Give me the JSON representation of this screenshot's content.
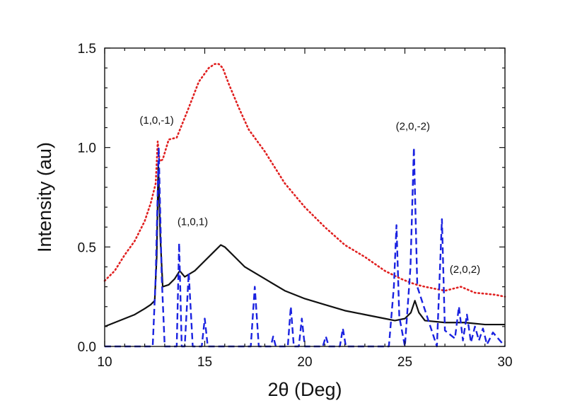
{
  "chart_data": {
    "type": "line",
    "xlabel": "2θ (Deg)",
    "ylabel": "Intensity (au)",
    "xlim": [
      10,
      30
    ],
    "ylim": [
      0,
      1.5
    ],
    "x_ticks": [
      "10",
      "15",
      "20",
      "25",
      "30"
    ],
    "y_ticks": [
      "0.0",
      "0.5",
      "1.0",
      "1.5"
    ],
    "grid": false,
    "legend": "none",
    "series": [
      {
        "style": "dotted",
        "color": "#e02020",
        "x": [
          10.0,
          10.5,
          11.0,
          11.5,
          12.0,
          12.3,
          12.55,
          12.65,
          12.75,
          12.9,
          13.2,
          13.6,
          13.8,
          14.2,
          14.7,
          15.2,
          15.5,
          15.7,
          15.9,
          16.2,
          16.7,
          17.2,
          18.0,
          19.0,
          20.0,
          21.0,
          22.0,
          23.0,
          24.0,
          24.8,
          25.3,
          25.6,
          26.0,
          27.0,
          27.8,
          28.5,
          29.5,
          30.0
        ],
        "values": [
          0.33,
          0.38,
          0.46,
          0.53,
          0.63,
          0.72,
          0.82,
          1.03,
          0.93,
          0.94,
          1.04,
          1.05,
          1.1,
          1.2,
          1.33,
          1.4,
          1.42,
          1.42,
          1.4,
          1.32,
          1.2,
          1.09,
          0.98,
          0.82,
          0.7,
          0.6,
          0.51,
          0.45,
          0.38,
          0.34,
          0.32,
          0.31,
          0.3,
          0.28,
          0.3,
          0.27,
          0.26,
          0.25
        ]
      },
      {
        "style": "solid",
        "color": "#111111",
        "x": [
          10.0,
          10.5,
          11.0,
          11.5,
          12.0,
          12.3,
          12.5,
          12.6,
          12.68,
          12.78,
          12.9,
          13.2,
          13.5,
          13.75,
          14.0,
          14.5,
          15.0,
          15.5,
          15.8,
          16.0,
          16.5,
          17.0,
          18.0,
          19.0,
          20.0,
          21.0,
          22.0,
          23.0,
          24.0,
          24.5,
          25.0,
          25.3,
          25.5,
          25.7,
          26.0,
          27.0,
          28.0,
          29.0,
          30.0
        ],
        "values": [
          0.1,
          0.12,
          0.14,
          0.16,
          0.19,
          0.21,
          0.23,
          0.45,
          0.92,
          0.55,
          0.3,
          0.31,
          0.34,
          0.38,
          0.35,
          0.38,
          0.43,
          0.48,
          0.51,
          0.5,
          0.45,
          0.4,
          0.34,
          0.28,
          0.24,
          0.21,
          0.18,
          0.16,
          0.14,
          0.13,
          0.14,
          0.17,
          0.23,
          0.17,
          0.13,
          0.12,
          0.12,
          0.11,
          0.11
        ]
      },
      {
        "style": "dashed",
        "color": "#1a22e0",
        "x": [
          10.0,
          12.4,
          12.55,
          12.7,
          12.85,
          13.0,
          13.6,
          13.72,
          13.85,
          14.0,
          14.2,
          14.4,
          14.85,
          15.0,
          15.15,
          17.3,
          17.5,
          17.7,
          18.3,
          18.42,
          18.55,
          19.15,
          19.3,
          19.45,
          19.7,
          19.85,
          20.0,
          20.9,
          21.05,
          21.2,
          21.75,
          21.9,
          22.05,
          24.2,
          24.45,
          24.58,
          24.72,
          25.0,
          25.28,
          25.45,
          25.62,
          26.6,
          26.85,
          27.0,
          27.5,
          27.7,
          27.9,
          28.1,
          28.3,
          28.5,
          28.7,
          28.9,
          29.1,
          29.4,
          30.0
        ],
        "values": [
          0.0,
          0.0,
          0.35,
          1.0,
          0.35,
          0.0,
          0.0,
          0.52,
          0.0,
          0.0,
          0.37,
          0.0,
          0.0,
          0.14,
          0.0,
          0.0,
          0.3,
          0.0,
          0.0,
          0.05,
          0.0,
          0.0,
          0.2,
          0.0,
          0.0,
          0.14,
          0.0,
          0.0,
          0.05,
          0.0,
          0.0,
          0.09,
          0.0,
          0.0,
          0.3,
          0.61,
          0.15,
          0.0,
          0.4,
          1.0,
          0.3,
          0.0,
          0.64,
          0.08,
          0.04,
          0.2,
          0.03,
          0.16,
          0.02,
          0.1,
          0.03,
          0.09,
          0.01,
          0.07,
          0.0
        ]
      }
    ],
    "annotations": [
      {
        "text": "(1,0,-1)",
        "x": 12.6,
        "y": 1.12
      },
      {
        "text": "(1,0,1)",
        "x": 14.4,
        "y": 0.61
      },
      {
        "text": "(2,0,-2)",
        "x": 25.4,
        "y": 1.09
      },
      {
        "text": "(2,0,2)",
        "x": 28.0,
        "y": 0.37
      }
    ]
  }
}
